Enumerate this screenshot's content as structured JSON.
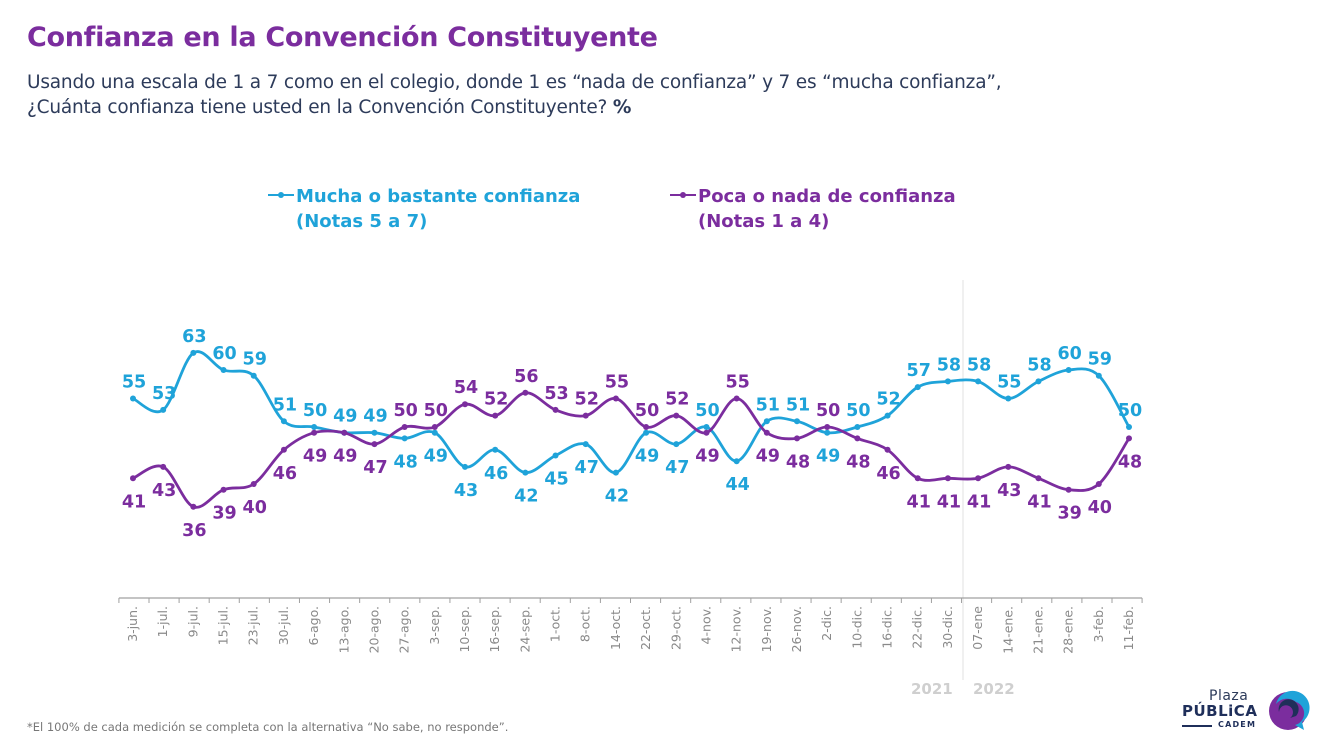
{
  "header": {
    "title": "Confianza en la Convención Constituyente",
    "subtitle_line1": "Usando una escala de 1 a 7 como en el colegio, donde 1 es “nada de confianza” y 7 es “mucha confianza”,",
    "subtitle_line2": "¿Cuánta confianza tiene usted en la Convención Constituyente?",
    "subtitle_unit": "%"
  },
  "legend": {
    "blue_line1": "Mucha o bastante confianza",
    "blue_line2": "(Notas 5 a 7)",
    "purple_line1": "Poca o nada de confianza",
    "purple_line2": "(Notas 1 a 4)"
  },
  "colors": {
    "blue": "#1fa3d9",
    "purple": "#7b2d9e",
    "axis": "#9a9a9a",
    "year": "#cfcfcf"
  },
  "chart_data": {
    "type": "line",
    "title": "Confianza en la Convención Constituyente",
    "xlabel": "",
    "ylabel": "%",
    "ylim": [
      30,
      70
    ],
    "grid": false,
    "legend_position": "top",
    "x": [
      "3-jun.",
      "1-jul.",
      "9-jul.",
      "15-jul.",
      "23-jul.",
      "30-jul.",
      "6-ago.",
      "13-ago.",
      "20-ago.",
      "27-ago.",
      "3-sep.",
      "10-sep.",
      "16-sep.",
      "24-sep.",
      "1-oct.",
      "8-oct.",
      "14-oct.",
      "22-oct.",
      "29-oct.",
      "4-nov.",
      "12-nov.",
      "19-nov.",
      "26-nov.",
      "2-dic.",
      "10-dic.",
      "16-dic.",
      "22-dic.",
      "30-dic.",
      "07-ene",
      "14-ene.",
      "21-ene.",
      "28-ene.",
      "3-feb.",
      "11-feb."
    ],
    "series": [
      {
        "name": "Mucha o bastante confianza (Notas 5 a 7)",
        "color": "#1fa3d9",
        "values": [
          55,
          53,
          63,
          60,
          59,
          51,
          50,
          49,
          49,
          48,
          49,
          43,
          46,
          42,
          45,
          47,
          42,
          49,
          47,
          50,
          44,
          51,
          51,
          49,
          50,
          52,
          57,
          58,
          58,
          55,
          58,
          60,
          59,
          50
        ]
      },
      {
        "name": "Poca o nada de confianza (Notas 1 a 4)",
        "color": "#7b2d9e",
        "values": [
          41,
          43,
          36,
          39,
          40,
          46,
          49,
          49,
          47,
          50,
          50,
          54,
          52,
          56,
          53,
          52,
          55,
          50,
          52,
          49,
          55,
          49,
          48,
          50,
          48,
          46,
          41,
          41,
          41,
          43,
          41,
          39,
          40,
          48
        ]
      }
    ],
    "year_divider_after": "30-dic.",
    "year_labels": [
      "2021",
      "2022"
    ]
  },
  "footnote": "*El 100% de cada medición se completa con la alternativa “No sabe, no responde”.",
  "logo": {
    "line1": "Plaza",
    "line2": "PÚBLiCA",
    "line3": "CADEM"
  }
}
